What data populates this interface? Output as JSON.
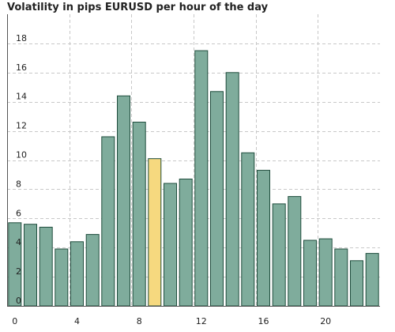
{
  "chart_data": {
    "type": "bar",
    "title": "Volatility in pips EURUSD per hour of the day",
    "xlabel": "",
    "ylabel": "",
    "categories": [
      0,
      1,
      2,
      3,
      4,
      5,
      6,
      7,
      8,
      9,
      10,
      11,
      12,
      13,
      14,
      15,
      16,
      17,
      18,
      19,
      20,
      21,
      22,
      23
    ],
    "values": [
      5.7,
      5.6,
      5.4,
      3.9,
      4.4,
      4.9,
      11.6,
      14.4,
      12.6,
      10.1,
      8.4,
      8.7,
      17.5,
      14.7,
      16.0,
      10.5,
      9.3,
      7.0,
      7.5,
      4.5,
      4.6,
      3.9,
      3.1,
      3.6
    ],
    "highlight_index": 9,
    "ylim": [
      0,
      20
    ],
    "yticks": [
      0,
      2,
      4,
      6,
      8,
      10,
      12,
      14,
      16,
      18
    ],
    "xticks": [
      0,
      4,
      8,
      12,
      16,
      20
    ],
    "grid": true,
    "colors": {
      "bar_fill": "#7fac9c",
      "bar_stroke": "#1f4d3d",
      "highlight_fill": "#f6d97f",
      "grid": "#c8c8c8",
      "axis": "#555555"
    }
  }
}
